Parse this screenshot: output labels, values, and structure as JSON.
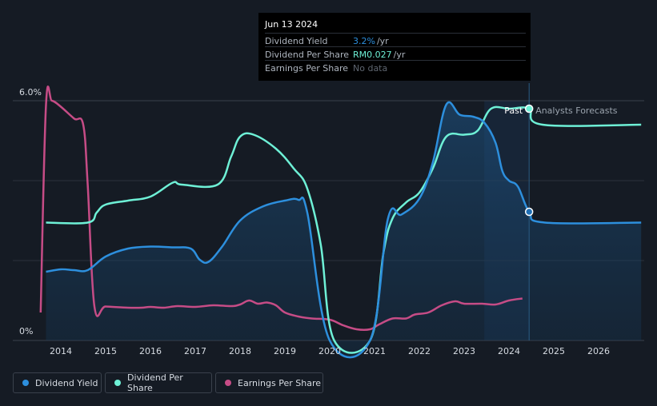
{
  "tooltip": {
    "date": "Jun 13 2024",
    "rows": [
      {
        "label": "Dividend Yield",
        "value": "3.2%",
        "unit": "/yr",
        "color": "#2d8fdd"
      },
      {
        "label": "Dividend Per Share",
        "value": "RM0.027",
        "unit": "/yr",
        "color": "#6ef0d6"
      },
      {
        "label": "Earnings Per Share",
        "value": "No data",
        "unit": "",
        "color": "#5f6670"
      }
    ]
  },
  "markers": {
    "past": "Past",
    "forecast": "Analysts Forecasts"
  },
  "legend": [
    {
      "label": "Dividend Yield",
      "color": "#2d8fdd"
    },
    {
      "label": "Dividend Per Share",
      "color": "#6ef0d6"
    },
    {
      "label": "Earnings Per Share",
      "color": "#c64c86"
    }
  ],
  "chart_data": {
    "type": "line",
    "title": "",
    "xlabel": "",
    "ylabel": "",
    "x_ticks": [
      "2014",
      "2015",
      "2016",
      "2017",
      "2018",
      "2019",
      "2020",
      "2021",
      "2022",
      "2023",
      "2024",
      "2025",
      "2026"
    ],
    "y_ticks": [
      "0%",
      "6.0%"
    ],
    "ylim": [
      0,
      6.0
    ],
    "xlim": [
      2013.0,
      2026.95
    ],
    "divider_x": 2024.45,
    "forecast_start_x": 2023.45,
    "series": [
      {
        "name": "Dividend Yield",
        "color": "#2d8fdd",
        "fill": true,
        "points": [
          [
            2013.67,
            1.72
          ],
          [
            2014.0,
            1.78
          ],
          [
            2014.3,
            1.76
          ],
          [
            2014.6,
            1.76
          ],
          [
            2015.0,
            2.1
          ],
          [
            2015.5,
            2.3
          ],
          [
            2016.0,
            2.35
          ],
          [
            2016.5,
            2.33
          ],
          [
            2016.9,
            2.3
          ],
          [
            2017.1,
            2.02
          ],
          [
            2017.3,
            1.97
          ],
          [
            2017.6,
            2.35
          ],
          [
            2018.0,
            3.0
          ],
          [
            2018.5,
            3.35
          ],
          [
            2019.0,
            3.5
          ],
          [
            2019.3,
            3.52
          ],
          [
            2019.5,
            3.2
          ],
          [
            2020.0,
            0.0
          ],
          [
            2020.9,
            0.0
          ],
          [
            2021.3,
            3.05
          ],
          [
            2021.6,
            3.15
          ],
          [
            2022.0,
            3.55
          ],
          [
            2022.3,
            4.45
          ],
          [
            2022.6,
            5.9
          ],
          [
            2022.9,
            5.65
          ],
          [
            2023.2,
            5.6
          ],
          [
            2023.45,
            5.45
          ],
          [
            2023.7,
            4.95
          ],
          [
            2023.85,
            4.25
          ],
          [
            2024.0,
            4.0
          ],
          [
            2024.2,
            3.85
          ],
          [
            2024.45,
            3.22
          ],
          [
            2024.8,
            2.95
          ],
          [
            2026.95,
            2.95
          ]
        ]
      },
      {
        "name": "Dividend Per Share",
        "color": "#6ef0d6",
        "fill": false,
        "points": [
          [
            2013.67,
            2.95
          ],
          [
            2014.6,
            2.95
          ],
          [
            2014.8,
            3.2
          ],
          [
            2015.0,
            3.4
          ],
          [
            2015.5,
            3.5
          ],
          [
            2016.0,
            3.6
          ],
          [
            2016.5,
            3.95
          ],
          [
            2016.7,
            3.9
          ],
          [
            2017.5,
            3.9
          ],
          [
            2017.8,
            4.6
          ],
          [
            2018.0,
            5.1
          ],
          [
            2018.3,
            5.15
          ],
          [
            2018.8,
            4.8
          ],
          [
            2019.2,
            4.3
          ],
          [
            2019.5,
            3.8
          ],
          [
            2019.8,
            2.4
          ],
          [
            2020.1,
            0.0
          ],
          [
            2020.9,
            0.0
          ],
          [
            2021.2,
            2.2
          ],
          [
            2021.4,
            3.05
          ],
          [
            2021.7,
            3.45
          ],
          [
            2022.0,
            3.7
          ],
          [
            2022.3,
            4.3
          ],
          [
            2022.6,
            5.1
          ],
          [
            2023.0,
            5.15
          ],
          [
            2023.3,
            5.25
          ],
          [
            2023.6,
            5.8
          ],
          [
            2024.0,
            5.8
          ],
          [
            2024.45,
            5.8
          ],
          [
            2024.75,
            5.4
          ],
          [
            2026.95,
            5.4
          ]
        ]
      },
      {
        "name": "Earnings Per Share",
        "color": "#c64c86",
        "fill": false,
        "points": [
          [
            2013.55,
            0.7
          ],
          [
            2013.67,
            5.9
          ],
          [
            2013.8,
            6.0
          ],
          [
            2014.0,
            5.85
          ],
          [
            2014.3,
            5.55
          ],
          [
            2014.5,
            5.4
          ],
          [
            2014.6,
            3.9
          ],
          [
            2014.75,
            0.85
          ],
          [
            2015.0,
            0.85
          ],
          [
            2015.5,
            0.82
          ],
          [
            2015.8,
            0.82
          ],
          [
            2016.0,
            0.84
          ],
          [
            2016.3,
            0.82
          ],
          [
            2016.6,
            0.86
          ],
          [
            2017.0,
            0.84
          ],
          [
            2017.4,
            0.88
          ],
          [
            2017.8,
            0.86
          ],
          [
            2018.0,
            0.9
          ],
          [
            2018.2,
            1.0
          ],
          [
            2018.4,
            0.92
          ],
          [
            2018.6,
            0.95
          ],
          [
            2018.8,
            0.88
          ],
          [
            2019.0,
            0.7
          ],
          [
            2019.3,
            0.6
          ],
          [
            2019.6,
            0.55
          ],
          [
            2020.0,
            0.52
          ],
          [
            2020.3,
            0.38
          ],
          [
            2020.6,
            0.28
          ],
          [
            2020.9,
            0.28
          ],
          [
            2021.1,
            0.4
          ],
          [
            2021.4,
            0.55
          ],
          [
            2021.7,
            0.55
          ],
          [
            2021.9,
            0.65
          ],
          [
            2022.2,
            0.7
          ],
          [
            2022.5,
            0.88
          ],
          [
            2022.8,
            0.98
          ],
          [
            2023.0,
            0.92
          ],
          [
            2023.4,
            0.92
          ],
          [
            2023.7,
            0.9
          ],
          [
            2024.0,
            1.0
          ],
          [
            2024.3,
            1.05
          ]
        ]
      }
    ]
  }
}
